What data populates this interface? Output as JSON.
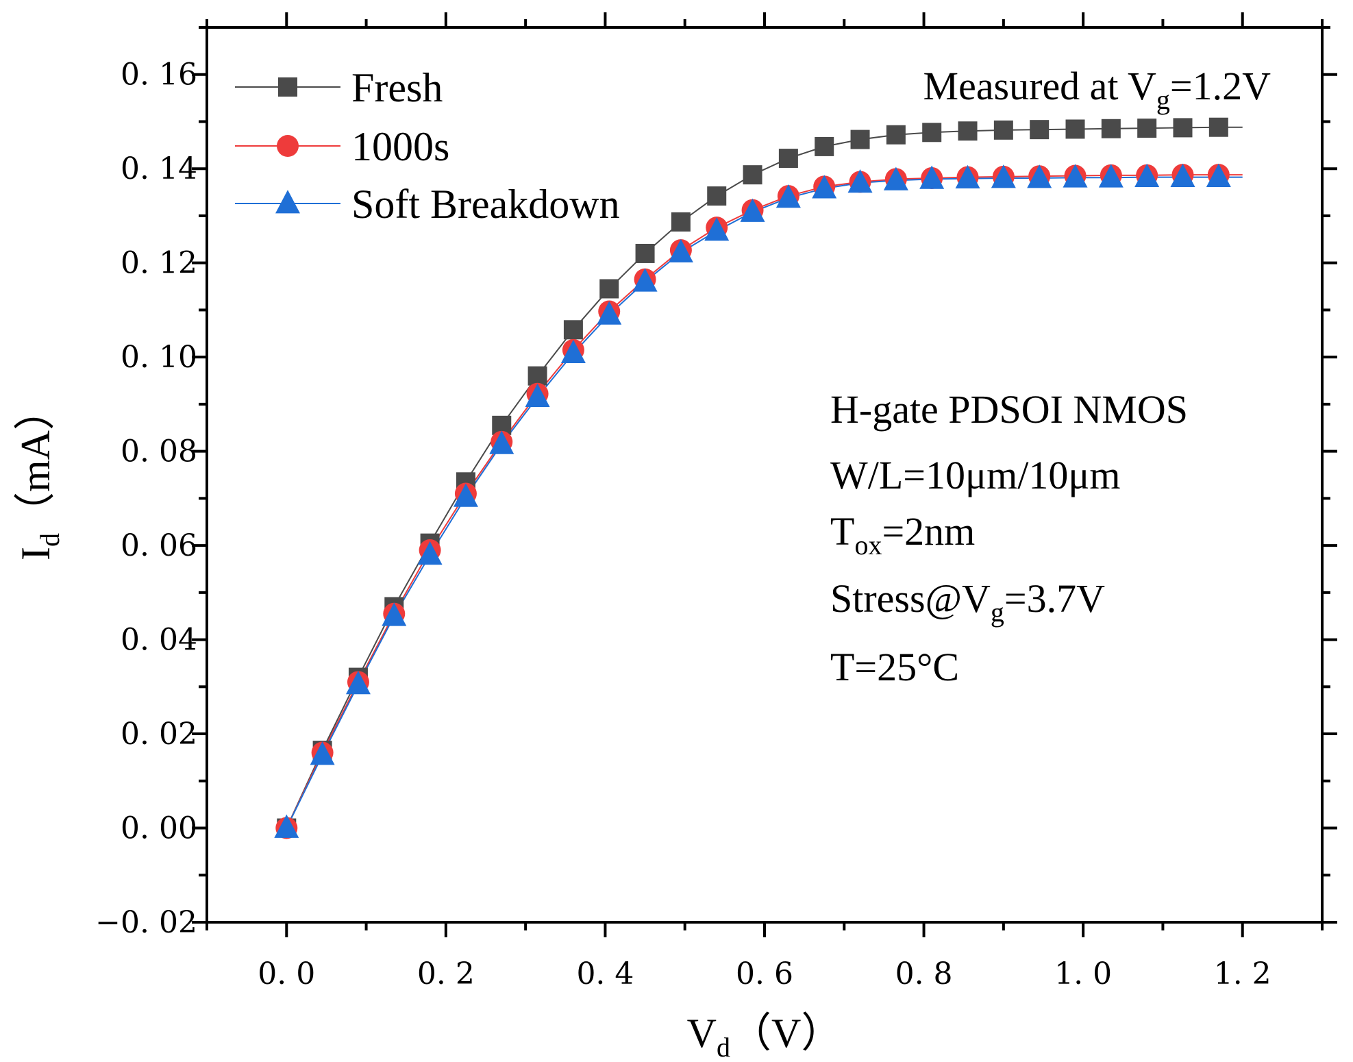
{
  "chart_data": {
    "type": "line",
    "title": "",
    "xlabel": "V",
    "xlabel_sub": "d",
    "xlabel_unit": "（V）",
    "ylabel": "I",
    "ylabel_sub": "d",
    "ylabel_unit": "（mA）",
    "xlim": [
      -0.1,
      1.3
    ],
    "ylim": [
      -0.02,
      0.17
    ],
    "x_ticks": [
      0.0,
      0.2,
      0.4,
      0.6,
      0.8,
      1.0,
      1.2
    ],
    "x_tick_labels": [
      "0. 0",
      "0. 2",
      "0. 4",
      "0. 6",
      "0. 8",
      "1. 0",
      "1. 2"
    ],
    "y_ticks": [
      -0.02,
      0.0,
      0.02,
      0.04,
      0.06,
      0.08,
      0.1,
      0.12,
      0.14,
      0.16
    ],
    "y_tick_labels": [
      "−0. 02",
      "0. 00",
      "0. 02",
      "0. 04",
      "0. 06",
      "0. 08",
      "0. 10",
      "0. 12",
      "0. 14",
      "0. 16"
    ],
    "grid": false,
    "legend_position": "top-left",
    "x": [
      0.0,
      0.045,
      0.09,
      0.135,
      0.18,
      0.225,
      0.27,
      0.315,
      0.36,
      0.405,
      0.45,
      0.495,
      0.54,
      0.585,
      0.63,
      0.675,
      0.72,
      0.765,
      0.81,
      0.855,
      0.9,
      0.945,
      0.99,
      1.035,
      1.08,
      1.125,
      1.17
    ],
    "line_x_end": 1.2,
    "series": [
      {
        "name": "Fresh",
        "color": "#4a4a4a",
        "marker": "square",
        "values": [
          0.0,
          0.0165,
          0.032,
          0.047,
          0.0605,
          0.0735,
          0.0855,
          0.096,
          0.1058,
          0.1145,
          0.122,
          0.1287,
          0.1342,
          0.1387,
          0.1422,
          0.1447,
          0.1462,
          0.1472,
          0.1477,
          0.148,
          0.1482,
          0.1483,
          0.1484,
          0.1485,
          0.1486,
          0.1487,
          0.1488
        ]
      },
      {
        "name": "1000s",
        "color": "#ee3b3b",
        "marker": "circle",
        "values": [
          0.0,
          0.016,
          0.031,
          0.0455,
          0.059,
          0.071,
          0.082,
          0.0922,
          0.1015,
          0.1097,
          0.1165,
          0.1227,
          0.1275,
          0.1312,
          0.1342,
          0.1362,
          0.1372,
          0.1378,
          0.138,
          0.1382,
          0.1383,
          0.1384,
          0.1385,
          0.1386,
          0.1386,
          0.1387,
          0.1387
        ]
      },
      {
        "name": "Soft Breakdown",
        "color": "#1f6fd6",
        "marker": "triangle",
        "values": [
          0.0,
          0.0155,
          0.0305,
          0.045,
          0.058,
          0.0703,
          0.0815,
          0.0915,
          0.1008,
          0.109,
          0.116,
          0.1222,
          0.1268,
          0.1308,
          0.1338,
          0.1358,
          0.137,
          0.1375,
          0.1378,
          0.1379,
          0.138,
          0.138,
          0.1381,
          0.1381,
          0.1382,
          0.1382,
          0.1382
        ]
      }
    ],
    "annotations": {
      "measured": {
        "prefix": "Measured at V",
        "sub": "g",
        "suffix": "=1.2V"
      },
      "device": "H-gate  PDSOI NMOS",
      "wl": "W/L=10μm/10μm",
      "tox": {
        "prefix": "T",
        "sub": "ox",
        "suffix": "=2nm"
      },
      "stress": {
        "prefix": "Stress@V",
        "sub": "g",
        "suffix": "=3.7V"
      },
      "temp": "T=25°C"
    }
  }
}
